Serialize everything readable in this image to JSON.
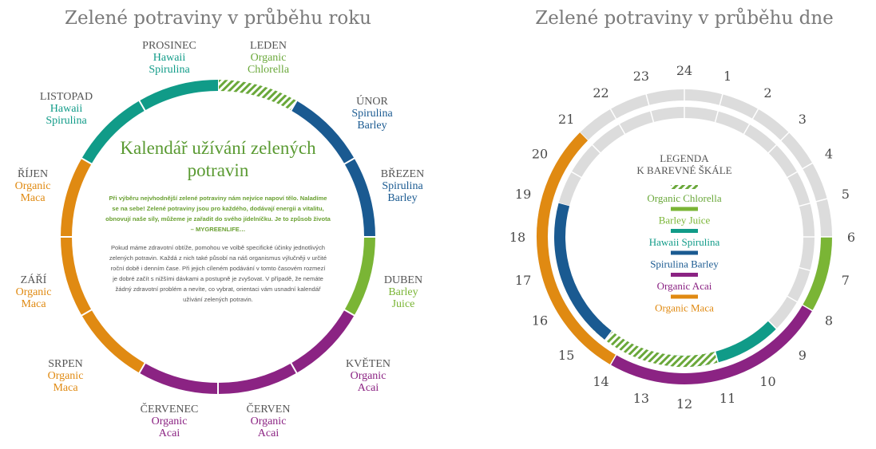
{
  "year": {
    "title": "Zelené potraviny v průběhu roku",
    "center_title": "Kalendář užívání zelených potravin",
    "center_lead": "Při výběru nejvhodnější zelené potraviny nám nejvíce napoví tělo. Naladíme se na sebe! Zelené potraviny jsou pro každého, dodávají energii a vitalitu, obnovují naše síly, můžeme je zařadit do svého jídelníčku. Je to způsob života – MYGREENLIFE…",
    "center_body": "Pokud máme zdravotní obtíže, pomohou ve volbě specifické účinky jednotlivých zelených potravin. Každá z nich také působí na náš organismus výlučněji v určité roční době i denním čase. Při jejich cíleném podávání v tomto časovém rozmezí je dobré začít s nižšími dávkami a postupně je zvyšovat. V případě, že nemáte žádný zdravotní problém a nevíte, co vybrat, orientaci vám usnadní kalendář užívání zelených potravin.",
    "months": [
      {
        "name": "LEDEN",
        "product": [
          "Organic",
          "Chlorella"
        ],
        "food": "chlorella"
      },
      {
        "name": "ÚNOR",
        "product": [
          "Spirulina",
          "Barley"
        ],
        "food": "spirulina_barley"
      },
      {
        "name": "BŘEZEN",
        "product": [
          "Spirulina",
          "Barley"
        ],
        "food": "spirulina_barley"
      },
      {
        "name": "DUBEN",
        "product": [
          "Barley",
          "Juice"
        ],
        "food": "barley_juice"
      },
      {
        "name": "KVĚTEN",
        "product": [
          "Organic",
          "Acai"
        ],
        "food": "acai"
      },
      {
        "name": "ČERVEN",
        "product": [
          "Organic",
          "Acai"
        ],
        "food": "acai"
      },
      {
        "name": "ČERVENEC",
        "product": [
          "Organic",
          "Acai"
        ],
        "food": "acai"
      },
      {
        "name": "SRPEN",
        "product": [
          "Organic",
          "Maca"
        ],
        "food": "maca"
      },
      {
        "name": "ZÁŘÍ",
        "product": [
          "Organic",
          "Maca"
        ],
        "food": "maca"
      },
      {
        "name": "ŘÍJEN",
        "product": [
          "Organic",
          "Maca"
        ],
        "food": "maca"
      },
      {
        "name": "LISTOPAD",
        "product": [
          "Hawaii",
          "Spirulina"
        ],
        "food": "hawaii"
      },
      {
        "name": "PROSINEC",
        "product": [
          "Hawaii",
          "Spirulina"
        ],
        "food": "hawaii"
      }
    ]
  },
  "day": {
    "title": "Zelené potraviny v průběhu dne",
    "hours": [
      "1",
      "2",
      "3",
      "4",
      "5",
      "6",
      "7",
      "8",
      "9",
      "10",
      "11",
      "12",
      "13",
      "14",
      "15",
      "16",
      "17",
      "18",
      "19",
      "20",
      "21",
      "22",
      "23",
      "24"
    ],
    "legend_title": [
      "LEGENDA",
      "K BAREVNÉ ŠKÁLE"
    ],
    "legend": [
      {
        "label": "Organic Chlorella",
        "food": "chlorella"
      },
      {
        "label": "Barley Juice",
        "food": "barley_juice"
      },
      {
        "label": "Hawaii Spirulina",
        "food": "hawaii"
      },
      {
        "label": "Spirulina Barley",
        "food": "spirulina_barley"
      },
      {
        "label": "Organic Acai",
        "food": "acai"
      },
      {
        "label": "Organic Maca",
        "food": "maca"
      }
    ],
    "outer_ring": [
      {
        "food": "barley_juice",
        "from_hour": 6,
        "to_hour": 8
      },
      {
        "food": "acai",
        "from_hour": 8,
        "to_hour": 14
      },
      {
        "food": "maca",
        "from_hour": 14,
        "to_hour": 21
      }
    ],
    "inner_ring": [
      {
        "food": "hawaii",
        "from_hour": 9,
        "to_hour": 12.5
      },
      {
        "food": "chlorella",
        "from_hour": 11,
        "to_hour": 15
      },
      {
        "food": "spirulina_barley",
        "from_hour": 14.5,
        "to_hour": 19
      }
    ]
  },
  "colors": {
    "chlorella": "#6aa83a",
    "barley_juice": "#7ab535",
    "hawaii": "#109b88",
    "spirulina_barley": "#1a5a91",
    "acai": "#8b2383",
    "maca": "#e08a12",
    "track": "#dcdcdc"
  }
}
